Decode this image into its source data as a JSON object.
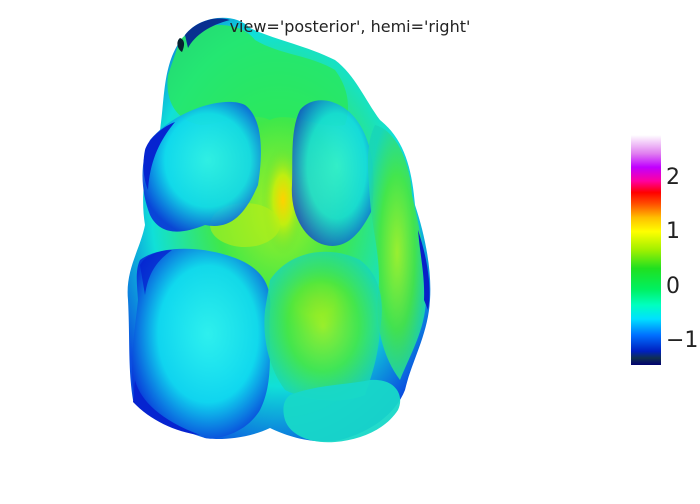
{
  "title": "view='posterior', hemi='right'",
  "chart_data": {
    "type": "heatmap",
    "title": "view='posterior', hemi='right'",
    "view": "posterior",
    "hemi": "right",
    "colorscale": "gist_ncar",
    "colorbar": {
      "range": [
        -1.45,
        2.8
      ],
      "ticks": [
        -1,
        0,
        1,
        2
      ],
      "tick_labels": [
        "−1",
        "0",
        "1",
        "2"
      ]
    }
  },
  "colors": {
    "background": "#ffffff",
    "low": "#0a1a8a",
    "mid": "#2ee84a",
    "high": "#ffe800"
  }
}
